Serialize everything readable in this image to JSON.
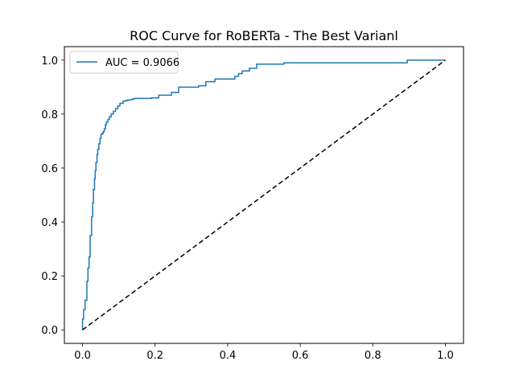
{
  "chart_data": {
    "type": "line",
    "title": "ROC Curve for RoBERTa - The Best Varianl",
    "xlabel": "",
    "ylabel": "",
    "xlim": [
      -0.05,
      1.05
    ],
    "ylim": [
      -0.05,
      1.05
    ],
    "x_ticks": [
      0.0,
      0.2,
      0.4,
      0.6,
      0.8,
      1.0
    ],
    "y_ticks": [
      0.0,
      0.2,
      0.4,
      0.6,
      0.8,
      1.0
    ],
    "x_tick_labels": [
      "0.0",
      "0.2",
      "0.4",
      "0.6",
      "0.8",
      "1.0"
    ],
    "y_tick_labels": [
      "0.0",
      "0.2",
      "0.4",
      "0.6",
      "0.8",
      "1.0"
    ],
    "grid": false,
    "legend": {
      "position": "upper-left"
    },
    "series": [
      {
        "name": "AUC = 0.9066",
        "color": "#1f77b4",
        "style": "step",
        "x": [
          0.0,
          0.0,
          0.003,
          0.003,
          0.007,
          0.007,
          0.012,
          0.012,
          0.015,
          0.015,
          0.018,
          0.018,
          0.021,
          0.021,
          0.025,
          0.025,
          0.028,
          0.028,
          0.03,
          0.03,
          0.033,
          0.033,
          0.035,
          0.035,
          0.037,
          0.037,
          0.04,
          0.04,
          0.042,
          0.042,
          0.045,
          0.045,
          0.048,
          0.048,
          0.051,
          0.051,
          0.054,
          0.054,
          0.057,
          0.057,
          0.06,
          0.06,
          0.063,
          0.063,
          0.066,
          0.066,
          0.07,
          0.07,
          0.074,
          0.074,
          0.079,
          0.079,
          0.085,
          0.085,
          0.091,
          0.091,
          0.097,
          0.097,
          0.103,
          0.103,
          0.112,
          0.112,
          0.118,
          0.118,
          0.124,
          0.124,
          0.13,
          0.13,
          0.136,
          0.136,
          0.142,
          0.142,
          0.19,
          0.19,
          0.21,
          0.21,
          0.245,
          0.245,
          0.265,
          0.265,
          0.32,
          0.32,
          0.34,
          0.34,
          0.365,
          0.365,
          0.42,
          0.42,
          0.43,
          0.43,
          0.44,
          0.44,
          0.46,
          0.46,
          0.48,
          0.48,
          0.555,
          0.555,
          0.895,
          0.895,
          1.0
        ],
        "y": [
          0.0,
          0.04,
          0.04,
          0.075,
          0.075,
          0.11,
          0.11,
          0.18,
          0.18,
          0.23,
          0.23,
          0.27,
          0.27,
          0.35,
          0.35,
          0.42,
          0.42,
          0.47,
          0.47,
          0.52,
          0.52,
          0.56,
          0.56,
          0.59,
          0.59,
          0.62,
          0.62,
          0.65,
          0.65,
          0.67,
          0.67,
          0.69,
          0.69,
          0.71,
          0.71,
          0.725,
          0.725,
          0.728,
          0.728,
          0.735,
          0.735,
          0.745,
          0.745,
          0.76,
          0.76,
          0.77,
          0.77,
          0.78,
          0.78,
          0.79,
          0.79,
          0.8,
          0.8,
          0.81,
          0.81,
          0.82,
          0.82,
          0.83,
          0.83,
          0.84,
          0.84,
          0.848,
          0.848,
          0.85,
          0.85,
          0.852,
          0.852,
          0.853,
          0.853,
          0.855,
          0.855,
          0.858,
          0.858,
          0.86,
          0.86,
          0.87,
          0.87,
          0.88,
          0.88,
          0.9,
          0.9,
          0.905,
          0.905,
          0.92,
          0.92,
          0.93,
          0.93,
          0.94,
          0.94,
          0.95,
          0.95,
          0.96,
          0.96,
          0.97,
          0.97,
          0.985,
          0.985,
          0.99,
          0.99,
          1.0,
          1.0
        ]
      },
      {
        "name": "",
        "color": "#000000",
        "style": "dashed",
        "x": [
          0.0,
          1.0
        ],
        "y": [
          0.0,
          1.0
        ]
      }
    ]
  }
}
